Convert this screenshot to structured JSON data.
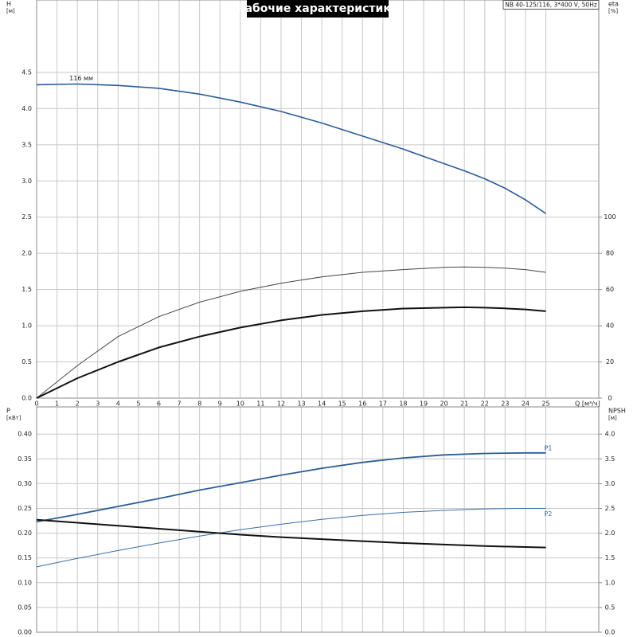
{
  "header": {
    "title": "Рабочие характеристики",
    "pump": "NB 40-125/116, 3*400 V, 50Hz"
  },
  "chart_data": [
    {
      "type": "line",
      "ylabel": "H",
      "yunit": "[м]",
      "y2label": "eta",
      "y2unit": "[%]",
      "xlabel": "Q [м³/ч]",
      "annotation": "116 мм",
      "x": [
        0,
        2,
        4,
        6,
        8,
        10,
        12,
        14,
        16,
        18,
        20,
        21,
        22,
        23,
        24,
        25
      ],
      "xlim": [
        0,
        27.6
      ],
      "xticks": [
        0,
        1,
        2,
        3,
        4,
        5,
        6,
        7,
        8,
        9,
        10,
        11,
        12,
        13,
        14,
        15,
        16,
        17,
        18,
        19,
        20,
        21,
        22,
        23,
        24,
        25
      ],
      "ylim": [
        0,
        5.5
      ],
      "yticks": [
        {
          "value": 0,
          "label": "0.0"
        },
        0.5,
        {
          "value": 1,
          "label": "1.0"
        },
        1.5,
        {
          "value": 2,
          "label": "2.0"
        },
        2.5,
        {
          "value": 3,
          "label": "3.0"
        },
        3.5,
        {
          "value": 4,
          "label": "4.0"
        },
        4.5
      ],
      "y2lim": [
        0,
        220
      ],
      "y2ticks": [
        0,
        20,
        40,
        60,
        80,
        100
      ],
      "grid": true,
      "series": [
        {
          "color": "#2b5c98",
          "linewidth": 1.6,
          "values": [
            4.33,
            4.34,
            4.32,
            4.28,
            4.2,
            4.09,
            3.96,
            3.8,
            3.62,
            3.44,
            3.24,
            3.14,
            3.03,
            2.9,
            2.74,
            2.55
          ]
        },
        {
          "axis": "y2",
          "color": "#444444",
          "linewidth": 1,
          "values": [
            0,
            18,
            34,
            45,
            53,
            59,
            63.5,
            67,
            69.5,
            71,
            72.3,
            72.5,
            72.3,
            71.8,
            71,
            69.5
          ]
        },
        {
          "axis": "y2",
          "color": "#111111",
          "linewidth": 2,
          "values": [
            0,
            11,
            20,
            28,
            34,
            39,
            43,
            46,
            48,
            49.5,
            50,
            50.2,
            50,
            49.6,
            49,
            48
          ]
        }
      ]
    },
    {
      "type": "line",
      "ylabel": "P",
      "yunit": "[кВт]",
      "y2label": "NPSH",
      "y2unit": "[м]",
      "x": [
        0,
        2,
        4,
        6,
        8,
        10,
        12,
        14,
        16,
        18,
        20,
        22,
        24,
        25
      ],
      "xlim": [
        0,
        27.6
      ],
      "xticks": [
        0,
        1,
        2,
        3,
        4,
        5,
        6,
        7,
        8,
        9,
        10,
        11,
        12,
        13,
        14,
        15,
        16,
        17,
        18,
        19,
        20,
        21,
        22,
        23,
        24,
        25
      ],
      "ylim": [
        0,
        0.455
      ],
      "yticks": [
        {
          "value": 0,
          "label": "0.00"
        },
        0.05,
        {
          "value": 0.1,
          "label": "0.10"
        },
        0.15,
        {
          "value": 0.2,
          "label": "0.20"
        },
        0.25,
        {
          "value": 0.3,
          "label": "0.30"
        },
        0.35,
        {
          "value": 0.4,
          "label": "0.40"
        }
      ],
      "y2lim": [
        0,
        4.55
      ],
      "y2ticks": [
        {
          "value": 0,
          "label": "0.0"
        },
        0.5,
        {
          "value": 1,
          "label": "1.0"
        },
        1.5,
        {
          "value": 2,
          "label": "2.0"
        },
        2.5,
        {
          "value": 3,
          "label": "3.0"
        },
        3.5,
        {
          "value": 4,
          "label": "4.0"
        }
      ],
      "grid": true,
      "series": [
        {
          "name": "P1",
          "color": "#2c5d96",
          "linewidth": 1.8,
          "values": [
            0.223,
            0.238,
            0.254,
            0.27,
            0.287,
            0.302,
            0.317,
            0.331,
            0.343,
            0.352,
            0.358,
            0.361,
            0.362,
            0.362
          ]
        },
        {
          "name": "P2",
          "color": "#3a6ea5",
          "linewidth": 1,
          "values": [
            0.132,
            0.149,
            0.165,
            0.18,
            0.194,
            0.207,
            0.218,
            0.228,
            0.236,
            0.242,
            0.246,
            0.249,
            0.25,
            0.25
          ]
        },
        {
          "axis": "y2",
          "color": "#111111",
          "linewidth": 2,
          "values": [
            2.27,
            2.21,
            2.15,
            2.09,
            2.03,
            1.97,
            1.92,
            1.88,
            1.84,
            1.8,
            1.77,
            1.74,
            1.72,
            1.71
          ]
        }
      ]
    }
  ]
}
